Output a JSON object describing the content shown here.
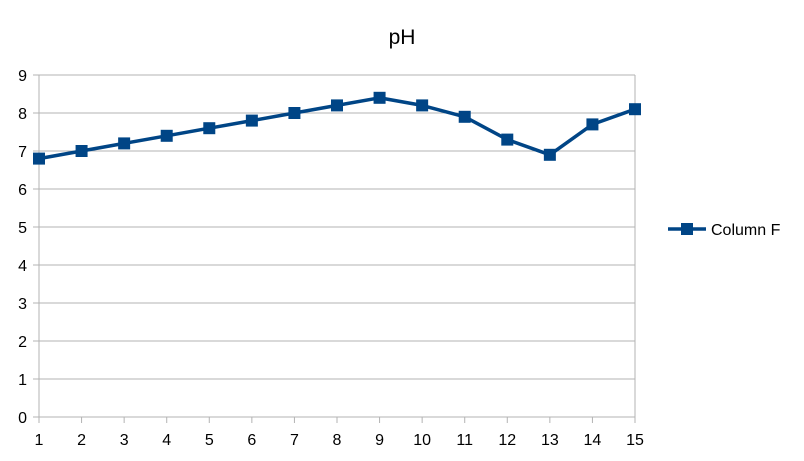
{
  "chart_data": {
    "type": "line",
    "title": "pH",
    "xlabel": "",
    "ylabel": "",
    "categories": [
      "1",
      "2",
      "3",
      "4",
      "5",
      "6",
      "7",
      "8",
      "9",
      "10",
      "11",
      "12",
      "13",
      "14",
      "15"
    ],
    "series": [
      {
        "name": "Column F",
        "color": "#004586",
        "marker": "square",
        "values": [
          6.8,
          7.0,
          7.2,
          7.4,
          7.6,
          7.8,
          8.0,
          8.2,
          8.4,
          8.2,
          7.9,
          7.3,
          6.9,
          7.7,
          8.1
        ]
      }
    ],
    "ylim": [
      0,
      9
    ],
    "yticks": [
      "0",
      "1",
      "2",
      "3",
      "4",
      "5",
      "6",
      "7",
      "8",
      "9"
    ],
    "grid": "horizontal",
    "legend_position": "right"
  }
}
